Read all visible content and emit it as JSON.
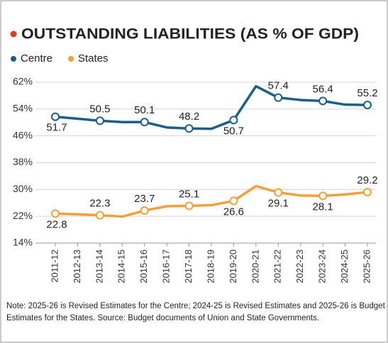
{
  "chart_data": {
    "type": "line",
    "title": "OUTSTANDING LIABILITIES (AS % OF GDP)",
    "categories": [
      "2011-12",
      "2012-13",
      "2013-14",
      "2014-15",
      "2015-16",
      "2016-17",
      "2017-18",
      "2018-19",
      "2019-20",
      "2020-21",
      "2021-22",
      "2022-23",
      "2023-24",
      "2024-25",
      "2025-26"
    ],
    "series": [
      {
        "name": "Centre",
        "color": "#1b5e8c",
        "values": [
          51.7,
          51.1,
          50.5,
          50.1,
          50.1,
          48.5,
          48.2,
          48.1,
          50.7,
          60.8,
          57.4,
          56.7,
          56.4,
          55.3,
          55.2
        ]
      },
      {
        "name": "States",
        "color": "#f2a03a",
        "values": [
          22.8,
          22.6,
          22.3,
          21.9,
          23.7,
          25.0,
          25.1,
          25.3,
          26.6,
          31.0,
          29.1,
          28.2,
          28.1,
          28.5,
          29.2
        ]
      }
    ],
    "ylim": [
      14,
      62
    ],
    "yticks": [
      {
        "value": 14,
        "label": "14%"
      },
      {
        "value": 22,
        "label": "22%"
      },
      {
        "value": 30,
        "label": "30%"
      },
      {
        "value": 38,
        "label": "38%"
      },
      {
        "value": 46,
        "label": "46%"
      },
      {
        "value": 54,
        "label": "54%"
      },
      {
        "value": 62,
        "label": "62%"
      }
    ],
    "grid": true,
    "note": [
      "Note: 2025-26 is Revised Estimates for the Centre; 2024-25 is Revised Estimates and 2025-26 is Budget",
      "Estimates for the States.  Source: Budget documents of Union and State Governments."
    ]
  }
}
